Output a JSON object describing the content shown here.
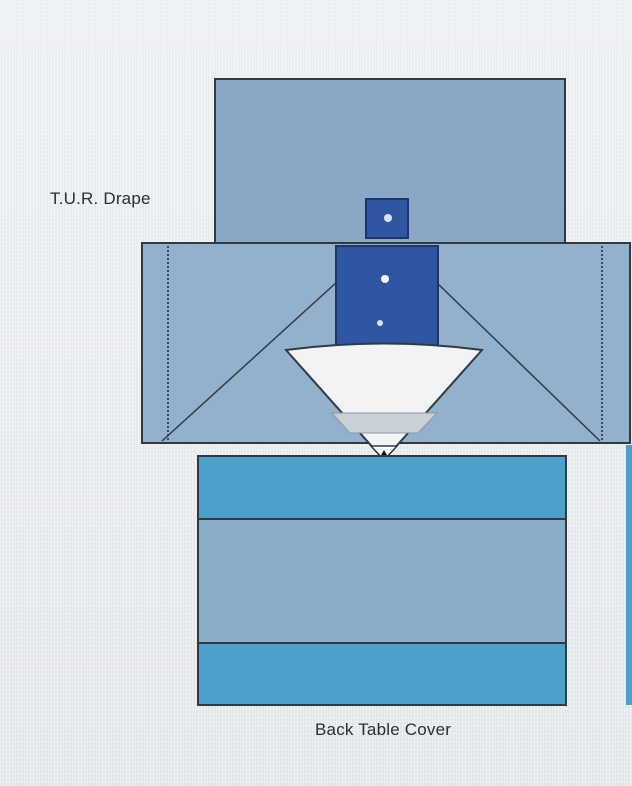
{
  "labels": {
    "tur_drape": "T.U.R. Drape",
    "back_table_cover": "Back Table Cover"
  },
  "colors": {
    "drape_blue": "#89a8c6",
    "wing_blue": "#93b0cc",
    "patient_blue": "#2f56a0",
    "cover_band_blue": "#4ea0cc",
    "cover_mid_blue": "#8aaec8",
    "line": "#2f3a45"
  }
}
